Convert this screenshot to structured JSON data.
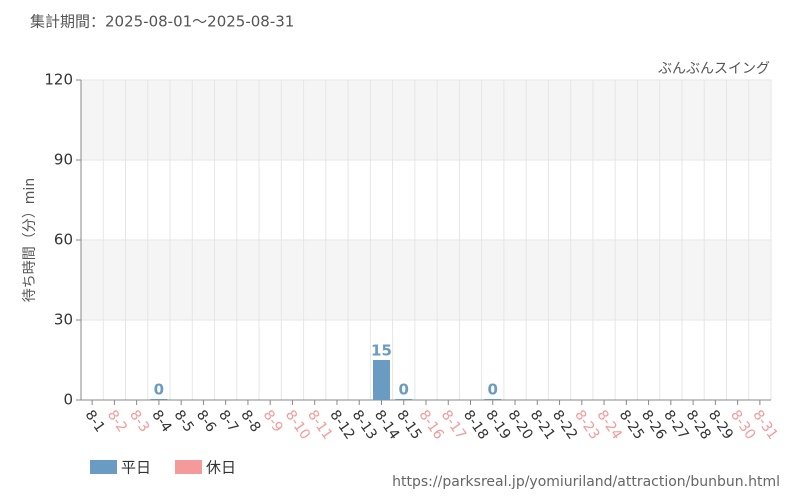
{
  "chart_data": {
    "type": "bar",
    "title": "集計期間：2025-08-01～2025-08-31",
    "subtitle": "ぶんぶんスイング",
    "y_label": "待ち時間（分）min",
    "source": "https://parksreal.jp/yomiuriland/attraction/bunbun.html",
    "categories": [
      "8-1",
      "8-2",
      "8-3",
      "8-4",
      "8-5",
      "8-6",
      "8-7",
      "8-8",
      "8-9",
      "8-10",
      "8-11",
      "8-12",
      "8-13",
      "8-14",
      "8-15",
      "8-16",
      "8-17",
      "8-18",
      "8-19",
      "8-20",
      "8-21",
      "8-22",
      "8-23",
      "8-24",
      "8-25",
      "8-26",
      "8-27",
      "8-28",
      "8-29",
      "8-30",
      "8-31"
    ],
    "holiday": [
      false,
      true,
      true,
      false,
      false,
      false,
      false,
      false,
      true,
      true,
      true,
      false,
      false,
      false,
      false,
      true,
      true,
      false,
      false,
      false,
      false,
      false,
      true,
      true,
      false,
      false,
      false,
      false,
      false,
      true,
      true
    ],
    "series": [
      {
        "name": "平日",
        "color": "#6a9bc3",
        "values": [
          null,
          null,
          null,
          0,
          null,
          null,
          null,
          null,
          null,
          null,
          null,
          null,
          null,
          15,
          0,
          null,
          null,
          null,
          0,
          null,
          null,
          null,
          null,
          null,
          null,
          null,
          null,
          null,
          null,
          null,
          null
        ]
      },
      {
        "name": "休日",
        "color": "#f59a9a",
        "values": [
          null,
          null,
          null,
          null,
          null,
          null,
          null,
          null,
          null,
          null,
          null,
          null,
          null,
          null,
          null,
          null,
          null,
          null,
          null,
          null,
          null,
          null,
          null,
          null,
          null,
          null,
          null,
          null,
          null,
          null,
          null
        ]
      }
    ],
    "ylim": [
      0,
      120
    ],
    "yticks": [
      0,
      30,
      60,
      90,
      120
    ],
    "grid": true
  }
}
